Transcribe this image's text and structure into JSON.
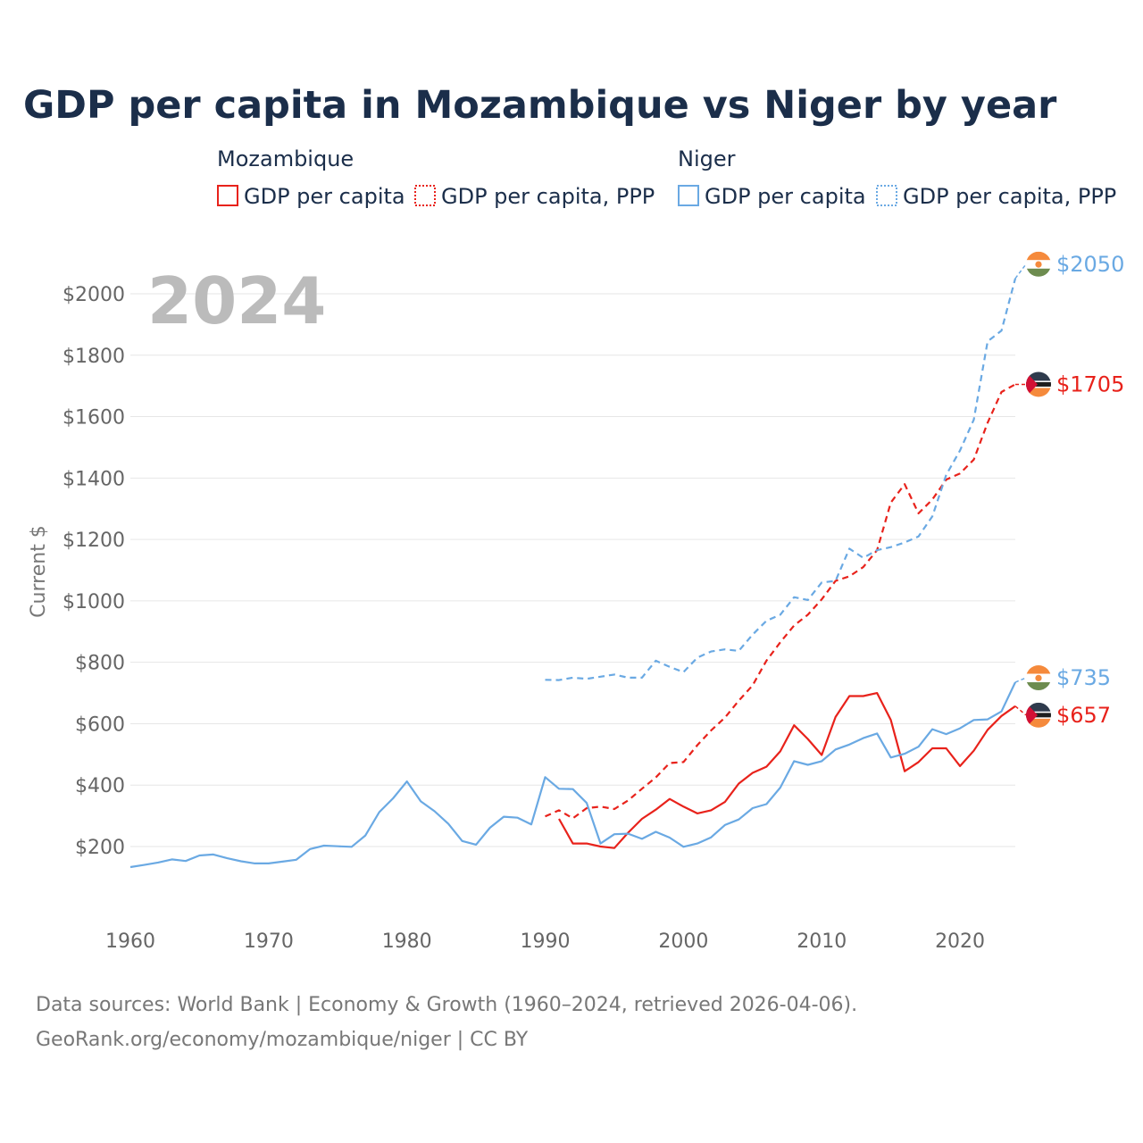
{
  "chart_data": {
    "type": "line",
    "title": "GDP per capita in Mozambique vs Niger by year",
    "year_label": "2024",
    "ylabel": "Current $",
    "xlabel": "",
    "xlim": [
      1960,
      2024
    ],
    "ylim": [
      0,
      2100
    ],
    "x_ticks": [
      1960,
      1970,
      1980,
      1990,
      2000,
      2010,
      2020
    ],
    "y_ticks": [
      200,
      400,
      600,
      800,
      1000,
      1200,
      1400,
      1600,
      1800,
      2000
    ],
    "y_tick_labels": [
      "$200",
      "$400",
      "$600",
      "$800",
      "$1000",
      "$1200",
      "$1400",
      "$1600",
      "$1800",
      "$2000"
    ],
    "grid": true,
    "legend": {
      "placement": "top",
      "groups": [
        {
          "country": "Mozambique",
          "entries": [
            "GDP per capita",
            "GDP per capita, PPP"
          ]
        },
        {
          "country": "Niger",
          "entries": [
            "GDP per capita",
            "GDP per capita, PPP"
          ]
        }
      ]
    },
    "series": [
      {
        "name": "Mozambique GDP per capita",
        "color": "#e8221b",
        "dash": false,
        "start": 1991,
        "end_label": "$657",
        "values": [
          290,
          210,
          210,
          200,
          195,
          245,
          290,
          320,
          355,
          330,
          308,
          318,
          345,
          405,
          440,
          460,
          510,
          595,
          550,
          498,
          622,
          690,
          690,
          700,
          612,
          445,
          475,
          520,
          520,
          462,
          512,
          580,
          625,
          657
        ]
      },
      {
        "name": "Mozambique GDP per capita, PPP",
        "color": "#e8221b",
        "dash": true,
        "start": 1990,
        "end_label": "$1705",
        "values": [
          298,
          318,
          292,
          325,
          330,
          322,
          350,
          388,
          425,
          472,
          475,
          530,
          578,
          620,
          675,
          725,
          805,
          865,
          920,
          955,
          1005,
          1065,
          1080,
          1110,
          1165,
          1320,
          1380,
          1285,
          1330,
          1395,
          1415,
          1460,
          1580,
          1680,
          1705
        ]
      },
      {
        "name": "Niger GDP per capita",
        "color": "#6aa9e3",
        "dash": false,
        "start": 1960,
        "end_label": "$735",
        "values": [
          133,
          140,
          148,
          158,
          153,
          171,
          174,
          162,
          152,
          145,
          145,
          151,
          157,
          192,
          203,
          201,
          199,
          236,
          312,
          357,
          412,
          347,
          315,
          274,
          218,
          206,
          261,
          297,
          294,
          272,
          426,
          388,
          387,
          342,
          210,
          240,
          242,
          225,
          248,
          229,
          199,
          210,
          230,
          270,
          288,
          325,
          338,
          392,
          478,
          466,
          478,
          516,
          532,
          553,
          568,
          490,
          502,
          525,
          582,
          566,
          585,
          612,
          614,
          640,
          735
        ]
      },
      {
        "name": "Niger GDP per capita, PPP",
        "color": "#6aa9e3",
        "dash": true,
        "start": 1990,
        "end_label": "$2050",
        "values": [
          743,
          742,
          750,
          746,
          753,
          760,
          750,
          750,
          805,
          785,
          768,
          815,
          835,
          842,
          837,
          890,
          935,
          955,
          1012,
          1003,
          1060,
          1065,
          1170,
          1140,
          1165,
          1175,
          1190,
          1210,
          1275,
          1410,
          1490,
          1590,
          1845,
          1880,
          2050
        ]
      }
    ],
    "source_line_1": "Data sources: World Bank | Economy & Growth (1960–2024, retrieved 2026-04-06).",
    "source_line_2": "GeoRank.org/economy/mozambique/niger | CC BY"
  },
  "flags": {
    "niger": {
      "icon": "niger-flag-icon",
      "colors": [
        "#f58a3c",
        "#ffffff",
        "#6d8c4f",
        "#f58a3c"
      ]
    },
    "mozambique": {
      "icon": "mozambique-flag-icon",
      "colors": [
        "#2f3b4d",
        "#ffffff",
        "#1d1d1d",
        "#f58a3c",
        "#d21034"
      ]
    }
  }
}
